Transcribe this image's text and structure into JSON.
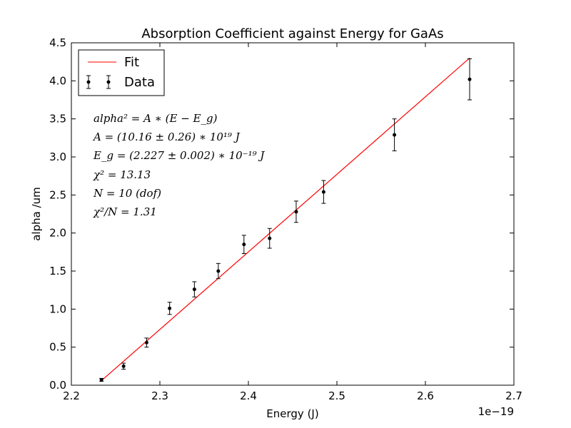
{
  "chart_data": {
    "type": "scatter",
    "title": "Absorption Coefficient against Energy for GaAs",
    "xlabel": "Energy (J)",
    "ylabel": "alpha /um",
    "x_offset_label": "1e−19",
    "xlim": [
      2.2,
      2.7
    ],
    "ylim": [
      0.0,
      4.5
    ],
    "xticks": [
      2.2,
      2.3,
      2.4,
      2.5,
      2.6,
      2.7
    ],
    "xtick_labels": [
      "2.2",
      "2.3",
      "2.4",
      "2.5",
      "2.6",
      "2.7"
    ],
    "yticks": [
      0.0,
      0.5,
      1.0,
      1.5,
      2.0,
      2.5,
      3.0,
      3.5,
      4.0,
      4.5
    ],
    "ytick_labels": [
      "0.0",
      "0.5",
      "1.0",
      "1.5",
      "2.0",
      "2.5",
      "3.0",
      "3.5",
      "4.0",
      "4.5"
    ],
    "grid": false,
    "legend_position": "top-left",
    "series": [
      {
        "name": "Fit",
        "kind": "line",
        "color": "#ff0000",
        "x": [
          2.234,
          2.65
        ],
        "y": [
          0.06,
          4.3
        ]
      },
      {
        "name": "Data",
        "kind": "errorbar",
        "color": "#000000",
        "points": [
          {
            "x": 2.234,
            "y": 0.07,
            "err": 0.02
          },
          {
            "x": 2.259,
            "y": 0.25,
            "err": 0.04
          },
          {
            "x": 2.285,
            "y": 0.56,
            "err": 0.06
          },
          {
            "x": 2.311,
            "y": 1.01,
            "err": 0.08
          },
          {
            "x": 2.339,
            "y": 1.26,
            "err": 0.1
          },
          {
            "x": 2.366,
            "y": 1.5,
            "err": 0.1
          },
          {
            "x": 2.395,
            "y": 1.85,
            "err": 0.12
          },
          {
            "x": 2.424,
            "y": 1.93,
            "err": 0.13
          },
          {
            "x": 2.454,
            "y": 2.28,
            "err": 0.14
          },
          {
            "x": 2.485,
            "y": 2.54,
            "err": 0.15
          },
          {
            "x": 2.565,
            "y": 3.29,
            "err": 0.21
          },
          {
            "x": 2.65,
            "y": 4.02,
            "err": 0.27
          }
        ]
      }
    ],
    "annotations": [
      "alpha² = A ∗ (E − E_g)",
      "A = (10.16 ± 0.26) ∗ 10¹⁹ J",
      "E_g = (2.227 ± 0.002) ∗ 10⁻¹⁹ J",
      "χ² = 13.13",
      "N = 10 (dof)",
      "χ²/N = 1.31"
    ]
  }
}
